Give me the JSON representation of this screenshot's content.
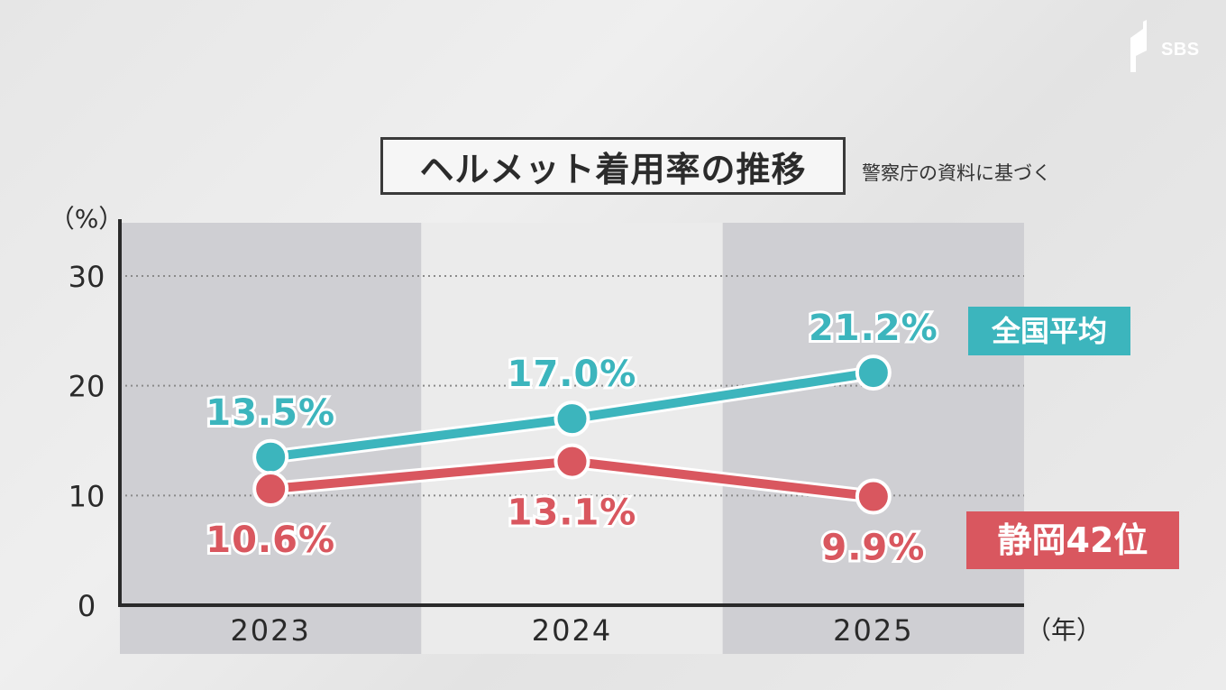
{
  "header": {
    "logo_text": "SBS",
    "title": "ヘルメット着用率の推移",
    "source": "警察庁の資料に基づく"
  },
  "chart_data": {
    "type": "line",
    "categories": [
      "2023",
      "2024",
      "2025"
    ],
    "xlabel": "（年）",
    "ylabel": "（%）",
    "ylim": [
      0,
      30
    ],
    "yticks": [
      0,
      10,
      20,
      30
    ],
    "grid": true,
    "series": [
      {
        "name": "全国平均",
        "values": [
          13.5,
          17.0,
          21.2
        ],
        "labels": [
          "13.5%",
          "17.0%",
          "21.2%"
        ],
        "color": "#3cb5bd",
        "label_position": "above"
      },
      {
        "name": "静岡42位",
        "values": [
          10.6,
          13.1,
          9.9
        ],
        "labels": [
          "10.6%",
          "13.1%",
          "9.9%"
        ],
        "color": "#d9575f",
        "label_position": "below"
      }
    ]
  },
  "colors": {
    "band_dark": "#cfcfd3",
    "band_light": "#ebebeb",
    "axis": "#2a2a2a",
    "national": "#3cb5bd",
    "shizuoka": "#d9575f"
  }
}
